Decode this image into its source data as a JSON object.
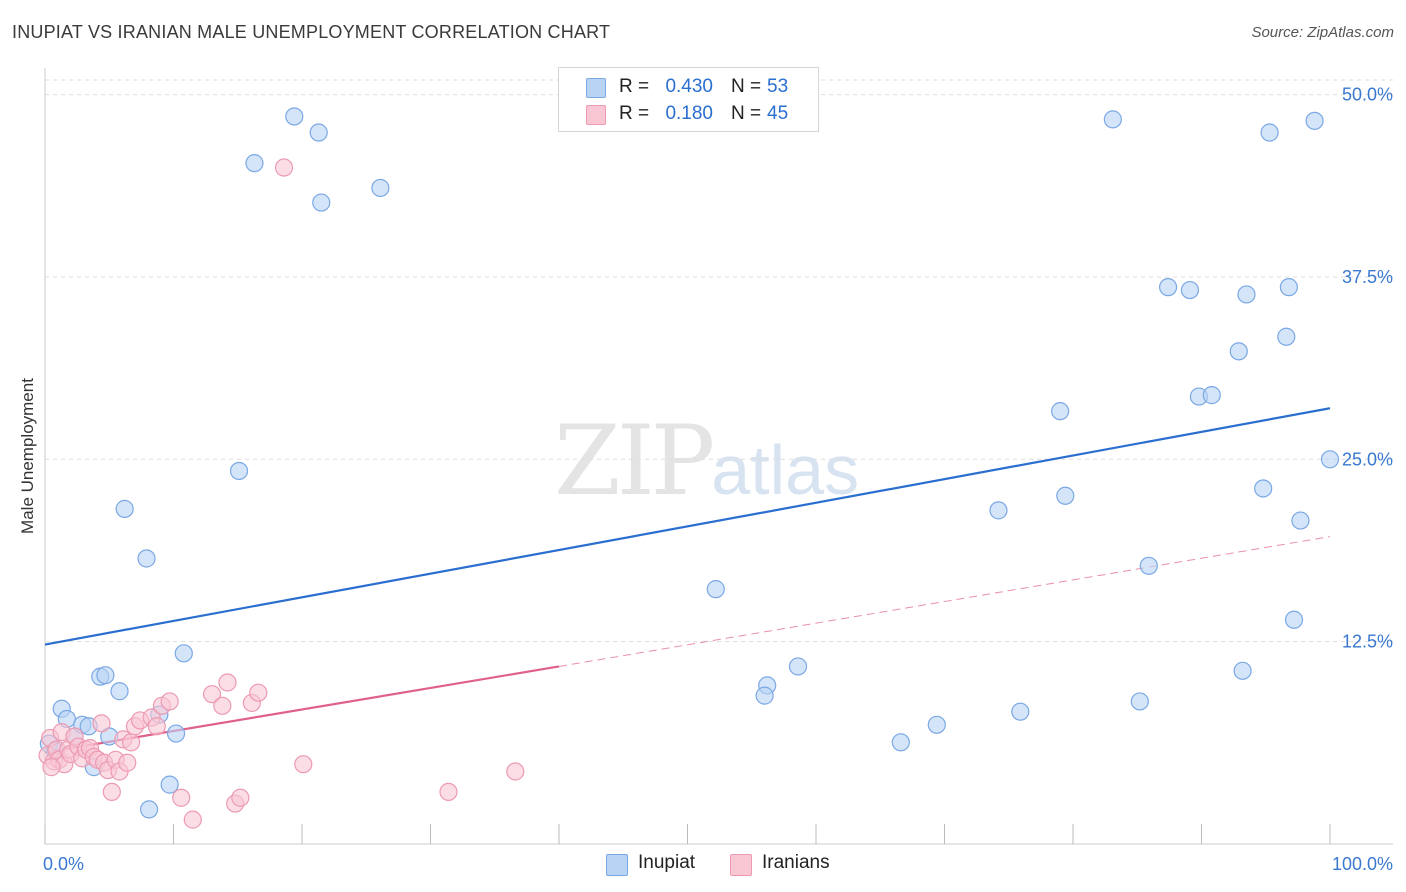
{
  "title": "INUPIAT VS IRANIAN MALE UNEMPLOYMENT CORRELATION CHART",
  "source": "Source: ZipAtlas.com",
  "watermark": {
    "zip": "ZIP",
    "atlas": "atlas"
  },
  "legend": {
    "inupiat": {
      "r_label": "R =",
      "r_value": "0.430",
      "n_label": "N =",
      "n_value": "53"
    },
    "iranians": {
      "r_label": "R =",
      "r_value": "0.180",
      "n_label": "N =",
      "n_value": "45"
    }
  },
  "colors": {
    "inupiat_fill": "#b9d3f5",
    "inupiat_stroke": "#7aa8e4",
    "inupiat_line": "#2a6fd0",
    "iranians_fill": "#f9c6d4",
    "iranians_stroke": "#ec9ab2",
    "iranians_line": "#e0608c",
    "axis_tick": "#3a78d0",
    "grid": "#dddddd"
  },
  "chart_data": {
    "type": "scatter",
    "title": "INUPIAT VS IRANIAN MALE UNEMPLOYMENT CORRELATION CHART",
    "xlabel": "",
    "ylabel": "Male Unemployment",
    "xlim": [
      0,
      100
    ],
    "ylim": [
      0,
      51
    ],
    "x_tick_labels": [
      "0.0%",
      "100.0%"
    ],
    "y_ticks": [
      12.5,
      25.0,
      37.5,
      50.0
    ],
    "y_tick_labels": [
      "12.5%",
      "25.0%",
      "37.5%",
      "50.0%"
    ],
    "grid": true,
    "legend_position": "top-center",
    "series": [
      {
        "name": "Inupiat",
        "trend": {
          "x": [
            0,
            100
          ],
          "y": [
            12.3,
            28.5
          ],
          "style": "solid"
        },
        "points": [
          [
            0.3,
            5.5
          ],
          [
            0.8,
            5.0
          ],
          [
            1.3,
            7.9
          ],
          [
            1.7,
            7.2
          ],
          [
            2.3,
            6.0
          ],
          [
            2.9,
            6.8
          ],
          [
            3.4,
            6.7
          ],
          [
            3.8,
            3.9
          ],
          [
            4.3,
            10.1
          ],
          [
            4.7,
            10.2
          ],
          [
            5.0,
            6.0
          ],
          [
            5.8,
            9.1
          ],
          [
            6.2,
            21.6
          ],
          [
            7.9,
            18.2
          ],
          [
            8.1,
            1.0
          ],
          [
            8.9,
            7.5
          ],
          [
            9.7,
            2.7
          ],
          [
            10.2,
            6.2
          ],
          [
            10.8,
            11.7
          ],
          [
            15.1,
            24.2
          ],
          [
            16.3,
            45.3
          ],
          [
            19.4,
            48.5
          ],
          [
            21.3,
            47.4
          ],
          [
            21.5,
            42.6
          ],
          [
            26.1,
            43.6
          ],
          [
            52.2,
            16.1
          ],
          [
            56.2,
            9.5
          ],
          [
            56.0,
            8.8
          ],
          [
            58.6,
            10.8
          ],
          [
            66.6,
            5.6
          ],
          [
            69.4,
            6.8
          ],
          [
            74.2,
            21.5
          ],
          [
            75.9,
            7.7
          ],
          [
            79.0,
            28.3
          ],
          [
            79.4,
            22.5
          ],
          [
            83.1,
            48.3
          ],
          [
            85.2,
            8.4
          ],
          [
            85.9,
            17.7
          ],
          [
            87.4,
            36.8
          ],
          [
            89.1,
            36.6
          ],
          [
            89.8,
            29.3
          ],
          [
            90.8,
            29.4
          ],
          [
            92.9,
            32.4
          ],
          [
            93.2,
            10.5
          ],
          [
            93.5,
            36.3
          ],
          [
            94.8,
            23.0
          ],
          [
            95.3,
            47.4
          ],
          [
            96.6,
            33.4
          ],
          [
            96.8,
            36.8
          ],
          [
            97.2,
            14.0
          ],
          [
            97.7,
            20.8
          ],
          [
            98.8,
            48.2
          ],
          [
            100.0,
            25.0
          ]
        ]
      },
      {
        "name": "Iranians",
        "trend": {
          "x": [
            0,
            40
          ],
          "y": [
            4.9,
            10.8
          ],
          "style": "solid",
          "extension": {
            "x": [
              40,
              100
            ],
            "y": [
              10.8,
              19.7
            ],
            "style": "dashed"
          }
        },
        "points": [
          [
            0.2,
            4.7
          ],
          [
            0.4,
            5.9
          ],
          [
            0.7,
            4.3
          ],
          [
            0.9,
            5.1
          ],
          [
            1.1,
            4.4
          ],
          [
            1.3,
            6.3
          ],
          [
            1.5,
            4.1
          ],
          [
            1.8,
            5.1
          ],
          [
            2.0,
            4.8
          ],
          [
            2.3,
            6.0
          ],
          [
            2.6,
            5.3
          ],
          [
            2.9,
            4.5
          ],
          [
            3.2,
            5.1
          ],
          [
            3.5,
            5.2
          ],
          [
            3.8,
            4.6
          ],
          [
            4.1,
            4.4
          ],
          [
            4.4,
            6.9
          ],
          [
            4.6,
            4.2
          ],
          [
            4.9,
            3.7
          ],
          [
            5.2,
            2.2
          ],
          [
            5.5,
            4.4
          ],
          [
            5.8,
            3.6
          ],
          [
            6.1,
            5.8
          ],
          [
            6.4,
            4.2
          ],
          [
            6.7,
            5.6
          ],
          [
            7.0,
            6.7
          ],
          [
            7.4,
            7.1
          ],
          [
            8.3,
            7.3
          ],
          [
            8.7,
            6.7
          ],
          [
            9.1,
            8.1
          ],
          [
            9.7,
            8.4
          ],
          [
            10.6,
            1.8
          ],
          [
            11.5,
            0.3
          ],
          [
            13.0,
            8.9
          ],
          [
            13.8,
            8.1
          ],
          [
            14.2,
            9.7
          ],
          [
            14.8,
            1.4
          ],
          [
            15.2,
            1.8
          ],
          [
            16.1,
            8.3
          ],
          [
            16.6,
            9.0
          ],
          [
            18.6,
            45.0
          ],
          [
            20.1,
            4.1
          ],
          [
            31.4,
            2.2
          ],
          [
            36.6,
            3.6
          ],
          [
            0.5,
            3.9
          ]
        ]
      }
    ]
  },
  "bottom_legend": {
    "inupiat": "Inupiat",
    "iranians": "Iranians"
  }
}
